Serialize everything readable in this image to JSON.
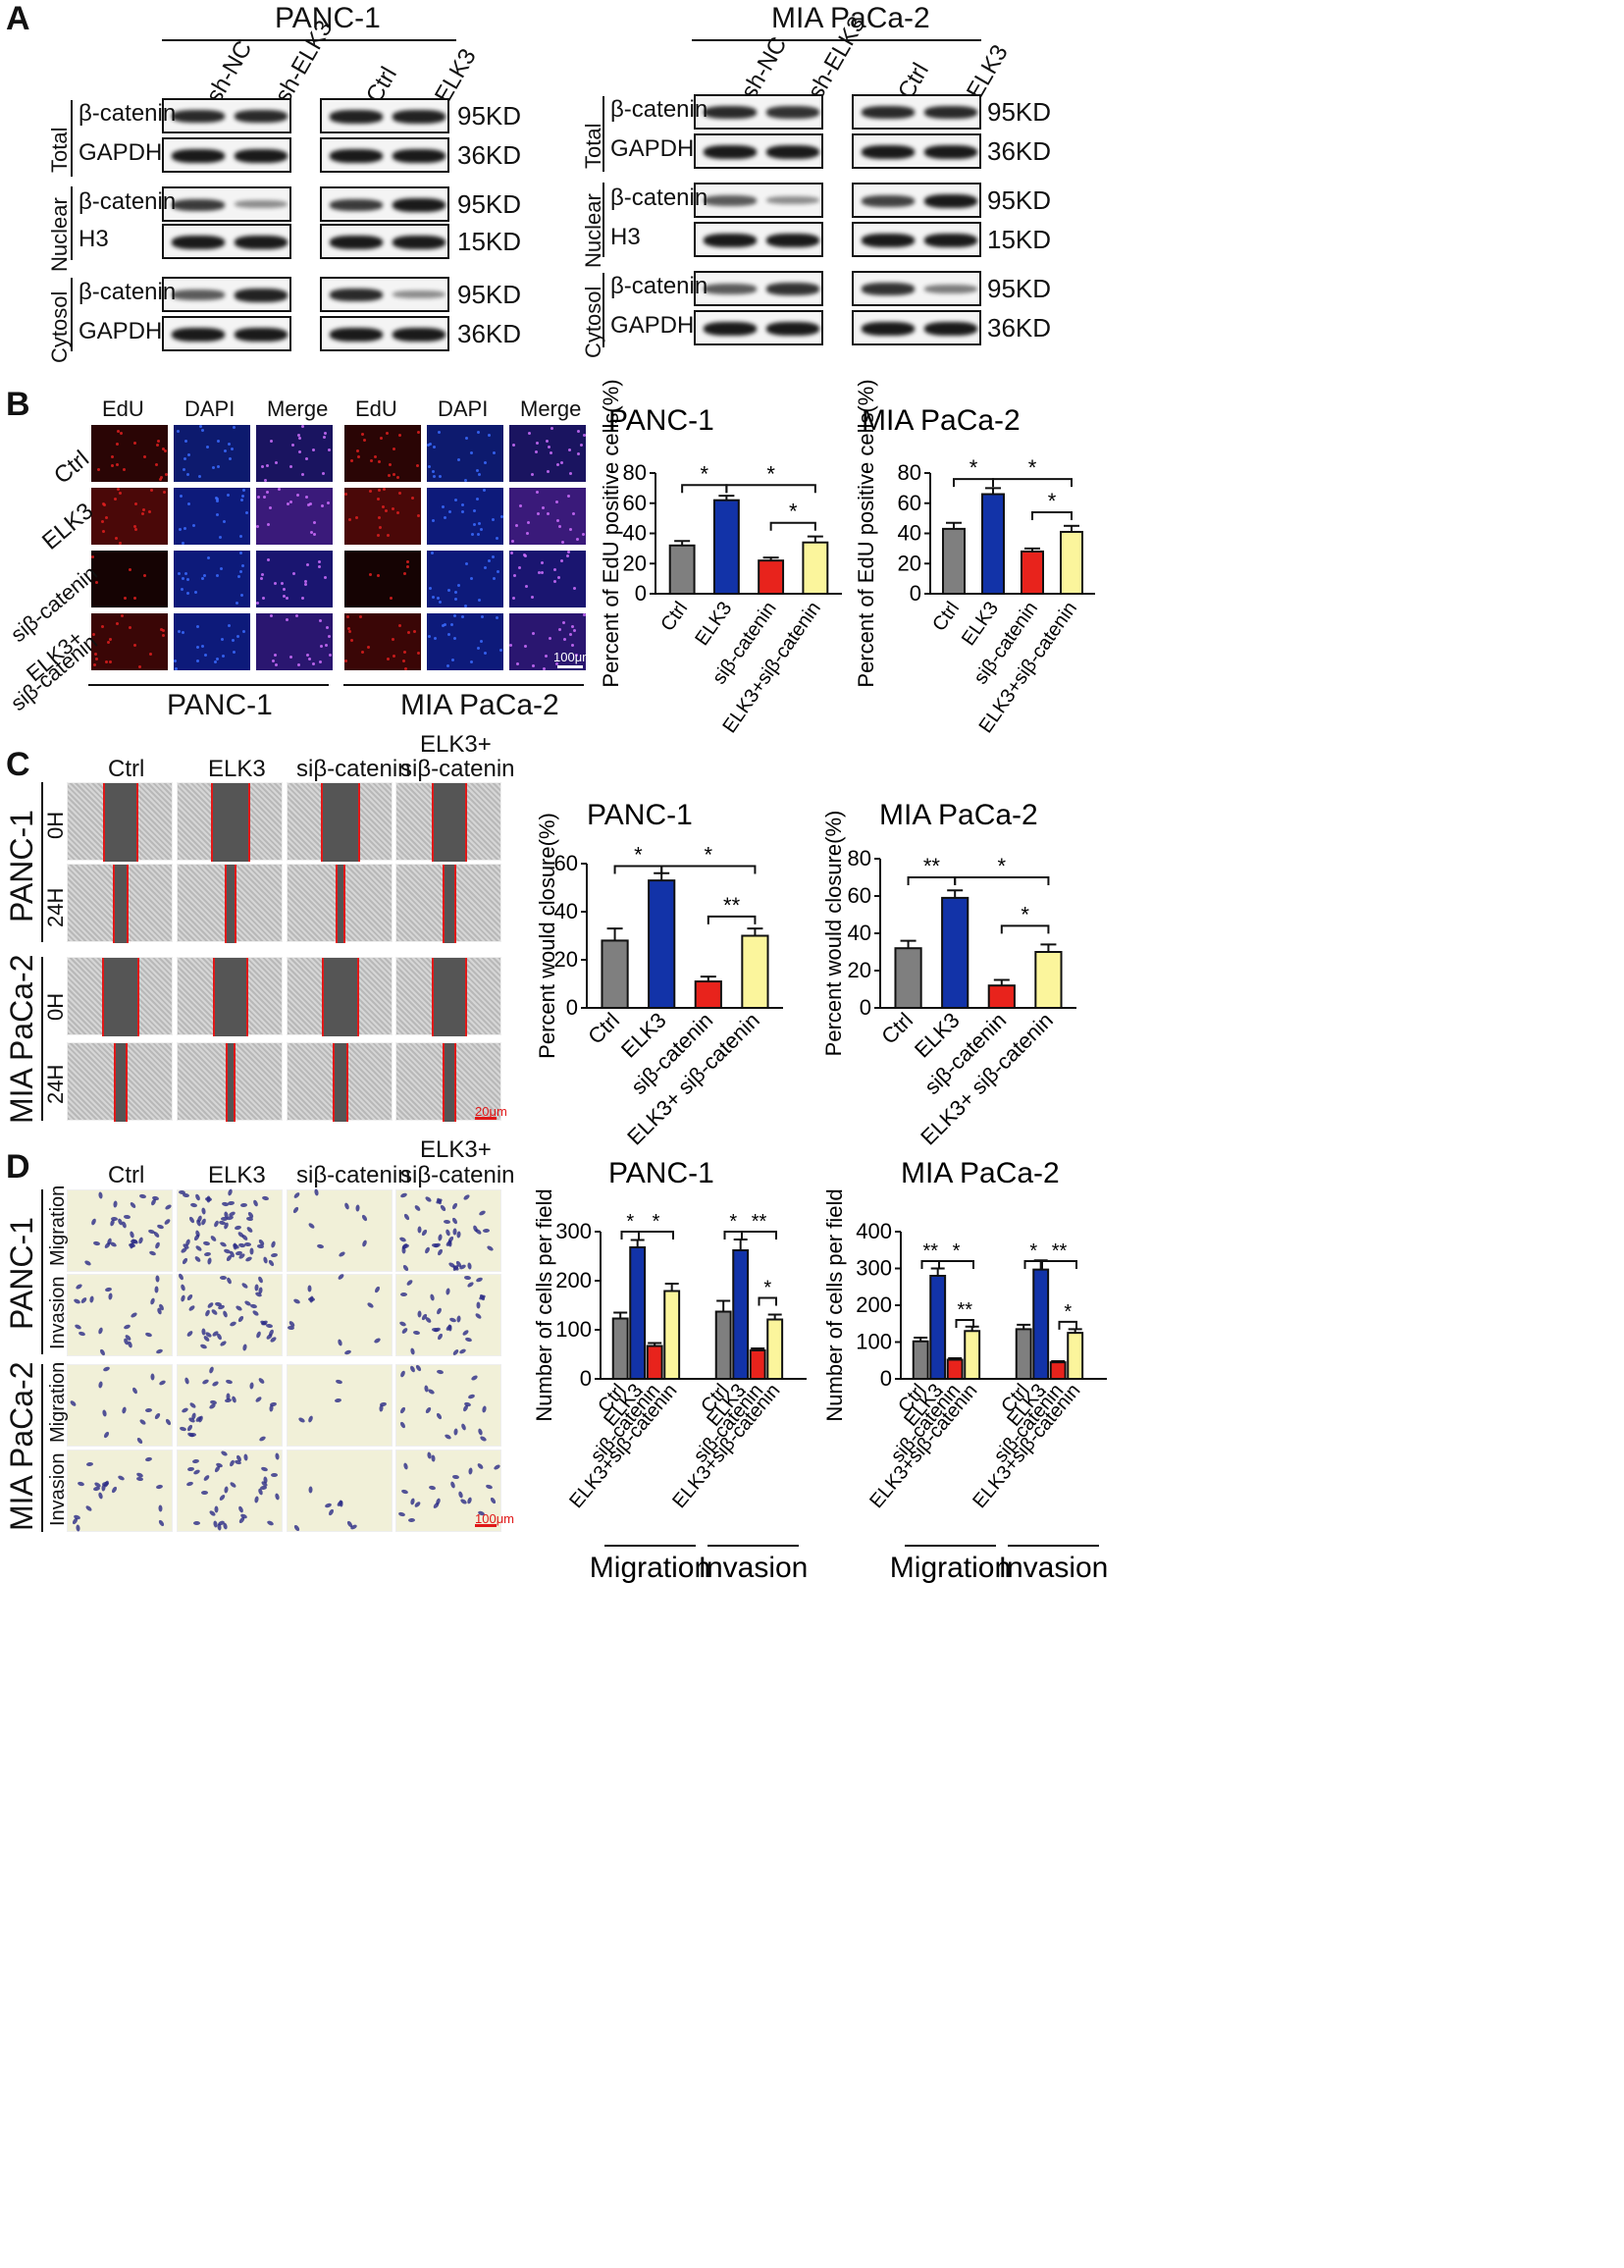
{
  "panels": {
    "A": "A",
    "B": "B",
    "C": "C",
    "D": "D"
  },
  "lines": {
    "panc": "PANC-1",
    "mia": "MIA PaCa-2"
  },
  "panelA": {
    "lanes_kd": [
      "sh-NC",
      "sh-ELK3"
    ],
    "lanes_oe": [
      "Ctrl",
      "ELK3"
    ],
    "fractions": [
      "Total",
      "Nuclear",
      "Cytosol"
    ],
    "rows": [
      {
        "protein": "β-catenin",
        "size": "95KD"
      },
      {
        "protein": "GAPDH",
        "size": "36KD"
      },
      {
        "protein": "β-catenin",
        "size": "95KD"
      },
      {
        "protein": "H3",
        "size": "15KD"
      },
      {
        "protein": "β-catenin",
        "size": "95KD"
      },
      {
        "protein": "GAPDH",
        "size": "36KD"
      }
    ]
  },
  "panelB": {
    "stains": [
      "EdU",
      "DAPI",
      "Merge"
    ],
    "groups": [
      "Ctrl",
      "ELK3",
      "siβ-catenin",
      "ELK3+",
      "siβ-catenin"
    ],
    "scale": "100μm"
  },
  "panelC": {
    "conds": [
      "Ctrl",
      "ELK3",
      "siβ-catenin",
      "ELK3+",
      "siβ-catenin"
    ],
    "times": [
      "0H",
      "24H"
    ],
    "scale": "20μm"
  },
  "panelD": {
    "conds": [
      "Ctrl",
      "ELK3",
      "siβ-catenin",
      "ELK3+",
      "siβ-catenin"
    ],
    "assays": [
      "Migration",
      "Invasion"
    ],
    "scale": "100μm"
  },
  "colors": {
    "ctrl": "#7f7f7f",
    "elk3": "#1233a8",
    "si": "#e8231c",
    "combo": "#fbf59c"
  },
  "chart_data": [
    {
      "type": "bar",
      "title": "PANC-1",
      "ylabel": "Percent of EdU positive cells(%)",
      "ylim": [
        0,
        80
      ],
      "yticks": [
        0,
        20,
        40,
        60,
        80
      ],
      "categories": [
        "Ctrl",
        "ELK3",
        "siβ-catenin",
        "ELK3+siβ-catenin"
      ],
      "values": [
        32,
        62,
        22,
        34
      ],
      "errors": [
        3,
        3,
        2,
        4
      ],
      "sig": [
        {
          "a": 0,
          "b": 1,
          "label": "*",
          "y": 72
        },
        {
          "a": 1,
          "b": 3,
          "label": "*",
          "y": 72
        },
        {
          "a": 2,
          "b": 3,
          "label": "*",
          "y": 47
        }
      ]
    },
    {
      "type": "bar",
      "title": "MIA PaCa-2",
      "ylabel": "Percent of EdU positive cells(%)",
      "ylim": [
        0,
        80
      ],
      "yticks": [
        0,
        20,
        40,
        60,
        80
      ],
      "categories": [
        "Ctrl",
        "ELK3",
        "siβ-catenin",
        "ELK3+siβ-catenin"
      ],
      "values": [
        43,
        66,
        28,
        41
      ],
      "errors": [
        4,
        4,
        2,
        4
      ],
      "sig": [
        {
          "a": 0,
          "b": 1,
          "label": "*",
          "y": 76
        },
        {
          "a": 1,
          "b": 3,
          "label": "*",
          "y": 76
        },
        {
          "a": 2,
          "b": 3,
          "label": "*",
          "y": 54
        }
      ]
    },
    {
      "type": "bar",
      "title": "PANC-1",
      "ylabel": "Percent would closure(%)",
      "ylim": [
        0,
        60
      ],
      "yticks": [
        0,
        20,
        40,
        60
      ],
      "categories": [
        "Ctrl",
        "ELK3",
        "siβ-catenin",
        "ELK3+ siβ-catenin"
      ],
      "values": [
        28,
        53,
        11,
        30
      ],
      "errors": [
        5,
        3,
        2,
        3
      ],
      "sig": [
        {
          "a": 0,
          "b": 1,
          "label": "*",
          "y": 59
        },
        {
          "a": 1,
          "b": 3,
          "label": "*",
          "y": 59
        },
        {
          "a": 2,
          "b": 3,
          "label": "**",
          "y": 38
        }
      ]
    },
    {
      "type": "bar",
      "title": "MIA PaCa-2",
      "ylabel": "Percent would closure(%)",
      "ylim": [
        0,
        80
      ],
      "yticks": [
        0,
        20,
        40,
        60,
        80
      ],
      "categories": [
        "Ctrl",
        "ELK3",
        "siβ-catenin",
        "ELK3+ siβ-catenin"
      ],
      "values": [
        32,
        59,
        12,
        30
      ],
      "errors": [
        4,
        4,
        3,
        4
      ],
      "sig": [
        {
          "a": 0,
          "b": 1,
          "label": "**",
          "y": 70
        },
        {
          "a": 1,
          "b": 3,
          "label": "*",
          "y": 70
        },
        {
          "a": 2,
          "b": 3,
          "label": "*",
          "y": 44
        }
      ]
    },
    {
      "type": "bar",
      "title": "PANC-1",
      "ylabel": "Number of cells per field",
      "ylim": [
        0,
        300
      ],
      "yticks": [
        0,
        100,
        200,
        300
      ],
      "groups": [
        "Migration",
        "Invasion"
      ],
      "categories": [
        "Ctrl",
        "ELK3",
        "siβ-catenin",
        "ELK3+siβ-catenin"
      ],
      "series": [
        {
          "name": "Migration",
          "values": [
            123,
            268,
            67,
            179
          ],
          "errors": [
            12,
            15,
            6,
            15
          ]
        },
        {
          "name": "Invasion",
          "values": [
            137,
            262,
            58,
            121
          ],
          "errors": [
            22,
            22,
            4,
            10
          ]
        }
      ],
      "sig": [
        {
          "g": 0,
          "a": 0,
          "b": 1,
          "label": "*",
          "y": 300
        },
        {
          "g": 0,
          "a": 1,
          "b": 3,
          "label": "*",
          "y": 300
        },
        {
          "g": 1,
          "a": 0,
          "b": 1,
          "label": "*",
          "y": 300
        },
        {
          "g": 1,
          "a": 1,
          "b": 3,
          "label": "**",
          "y": 300
        },
        {
          "g": 1,
          "a": 2,
          "b": 3,
          "label": "*",
          "y": 165
        }
      ]
    },
    {
      "type": "bar",
      "title": "MIA PaCa-2",
      "ylabel": "Number of cells per field",
      "ylim": [
        0,
        400
      ],
      "yticks": [
        0,
        100,
        200,
        300,
        400
      ],
      "groups": [
        "Migration",
        "Invasion"
      ],
      "categories": [
        "Ctrl",
        "ELK3",
        "siβ-catenin",
        "ELK3+siβ-catenin"
      ],
      "series": [
        {
          "name": "Migration",
          "values": [
            102,
            280,
            52,
            130
          ],
          "errors": [
            10,
            20,
            4,
            12
          ]
        },
        {
          "name": "Invasion",
          "values": [
            135,
            297,
            45,
            125
          ],
          "errors": [
            12,
            25,
            3,
            10
          ]
        }
      ],
      "sig": [
        {
          "g": 0,
          "a": 0,
          "b": 1,
          "label": "**",
          "y": 320
        },
        {
          "g": 0,
          "a": 1,
          "b": 3,
          "label": "*",
          "y": 320
        },
        {
          "g": 0,
          "a": 2,
          "b": 3,
          "label": "**",
          "y": 160
        },
        {
          "g": 1,
          "a": 0,
          "b": 1,
          "label": "*",
          "y": 320
        },
        {
          "g": 1,
          "a": 1,
          "b": 3,
          "label": "**",
          "y": 320
        },
        {
          "g": 1,
          "a": 2,
          "b": 3,
          "label": "*",
          "y": 155
        }
      ]
    }
  ]
}
